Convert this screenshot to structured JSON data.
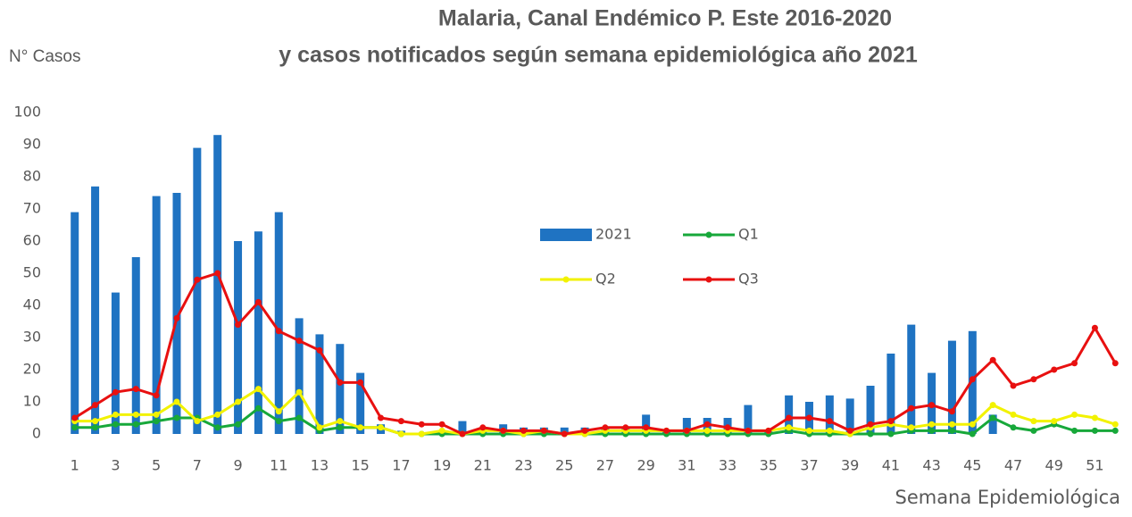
{
  "chart_data": {
    "type": "combo",
    "title": "Malaria, Canal Endémico P. Este 2016-2020",
    "subtitle": "y casos notificados según semana epidemiológica año 2021",
    "y_label": "N° Casos",
    "x_label": "Semana Epidemiológica",
    "x": [
      1,
      2,
      3,
      4,
      5,
      6,
      7,
      8,
      9,
      10,
      11,
      12,
      13,
      14,
      15,
      16,
      17,
      18,
      19,
      20,
      21,
      22,
      23,
      24,
      25,
      26,
      27,
      28,
      29,
      30,
      31,
      32,
      33,
      34,
      35,
      36,
      37,
      38,
      39,
      40,
      41,
      42,
      43,
      44,
      45,
      46,
      47,
      48,
      49,
      50,
      51,
      52
    ],
    "xlim": [
      0.4,
      52.6
    ],
    "xticks": [
      1,
      3,
      5,
      7,
      9,
      11,
      13,
      15,
      17,
      19,
      21,
      23,
      25,
      27,
      29,
      31,
      33,
      35,
      37,
      39,
      41,
      43,
      45,
      47,
      49,
      51
    ],
    "ylim": [
      0,
      100
    ],
    "yticks": [
      0,
      10,
      20,
      30,
      40,
      50,
      60,
      70,
      80,
      90,
      100
    ],
    "grid": false,
    "legend": "center",
    "series": [
      {
        "name": "2021",
        "type": "bar",
        "color": "#1f73c2",
        "values": [
          69,
          77,
          44,
          55,
          74,
          75,
          89,
          93,
          60,
          63,
          69,
          36,
          31,
          28,
          19,
          3,
          1,
          0,
          1,
          4,
          2,
          3,
          2,
          2,
          2,
          2,
          2,
          2,
          6,
          1,
          5,
          5,
          5,
          9,
          1,
          12,
          10,
          12,
          11,
          15,
          25,
          34,
          19,
          29,
          32,
          6,
          null,
          null,
          null,
          null,
          null,
          null
        ]
      },
      {
        "name": "Q1",
        "type": "line",
        "color": "#17a83a",
        "values": [
          2,
          2,
          3,
          3,
          4,
          5,
          5,
          2,
          3,
          8,
          4,
          5,
          1,
          2,
          2,
          2,
          0,
          0,
          0,
          0,
          0,
          0,
          0,
          0,
          0,
          0,
          0,
          0,
          0,
          0,
          0,
          0,
          0,
          0,
          0,
          1,
          0,
          0,
          0,
          0,
          0,
          1,
          1,
          1,
          0,
          5,
          2,
          1,
          3,
          1,
          1,
          1
        ]
      },
      {
        "name": "Q2",
        "type": "line",
        "color": "#f2f200",
        "values": [
          4,
          4,
          6,
          6,
          6,
          10,
          4,
          6,
          10,
          14,
          7,
          13,
          2,
          4,
          2,
          2,
          0,
          0,
          1,
          0,
          1,
          1,
          0,
          1,
          0,
          0,
          1,
          1,
          1,
          1,
          1,
          1,
          1,
          1,
          1,
          2,
          1,
          1,
          0,
          2,
          3,
          2,
          3,
          3,
          3,
          9,
          6,
          4,
          4,
          6,
          5,
          3
        ]
      },
      {
        "name": "Q3",
        "type": "line",
        "color": "#e81010",
        "values": [
          5,
          9,
          13,
          14,
          12,
          36,
          48,
          50,
          34,
          41,
          32,
          29,
          26,
          16,
          16,
          5,
          4,
          3,
          3,
          0,
          2,
          1,
          1,
          1,
          0,
          1,
          2,
          2,
          2,
          1,
          1,
          3,
          2,
          1,
          1,
          5,
          5,
          4,
          1,
          3,
          4,
          8,
          9,
          7,
          17,
          23,
          15,
          17,
          20,
          22,
          33,
          22
        ]
      }
    ]
  }
}
